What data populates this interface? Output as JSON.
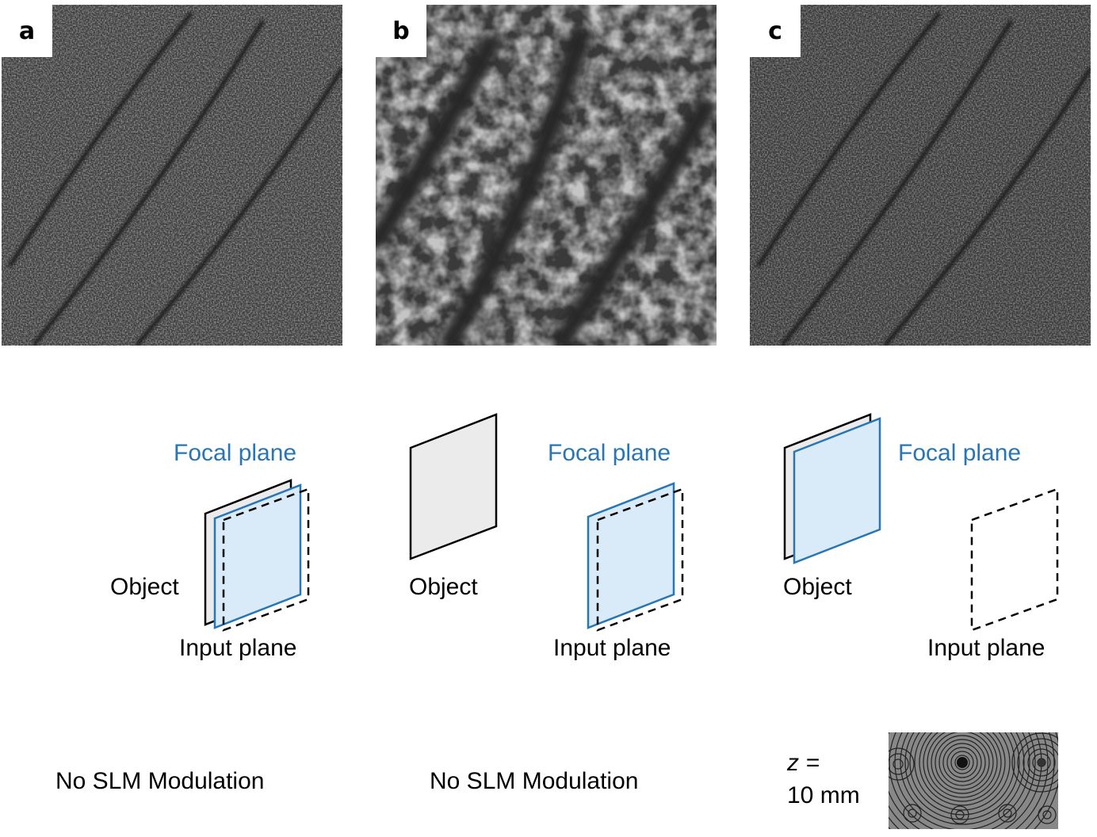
{
  "panels": [
    {
      "label": "a",
      "focal": "Focal plane",
      "object": "Object",
      "input": "Input plane",
      "modulation": "No SLM Modulation"
    },
    {
      "label": "b",
      "focal": "Focal plane",
      "object": "Object",
      "input": "Input plane",
      "modulation": "No SLM Modulation"
    },
    {
      "label": "c",
      "focal": "Focal plane",
      "object": "Object",
      "input": "Input plane",
      "z_label": "z =",
      "z_value": "10 mm"
    }
  ],
  "colors": {
    "focal_plane_stroke": "#2a75b3",
    "focal_plane_fill": "#d9ebf9",
    "object_fill": "#ebebeb"
  }
}
